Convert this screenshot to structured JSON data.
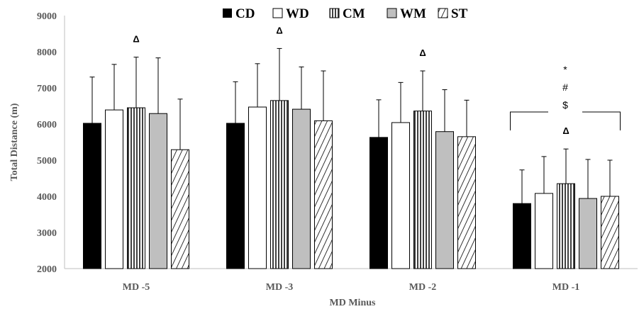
{
  "chart_data": {
    "type": "bar",
    "categories": [
      "MD -5",
      "MD -3",
      "MD -2",
      "MD -1"
    ],
    "series": [
      {
        "name": "CD",
        "values": [
          6020,
          6020,
          5630,
          3800
        ],
        "errors": [
          1280,
          1150,
          1040,
          930
        ],
        "fill": "#000000",
        "pattern": "solid"
      },
      {
        "name": "WD",
        "values": [
          6390,
          6470,
          6040,
          4080
        ],
        "errors": [
          1260,
          1200,
          1110,
          1020
        ],
        "fill": "#ffffff",
        "pattern": "solid"
      },
      {
        "name": "CM",
        "values": [
          6450,
          6650,
          6360,
          4350
        ],
        "errors": [
          1400,
          1440,
          1110,
          960
        ],
        "fill": "#7f7f7f",
        "pattern": "vertical"
      },
      {
        "name": "WM",
        "values": [
          6290,
          6410,
          5790,
          3940
        ],
        "errors": [
          1540,
          1170,
          1160,
          1080
        ],
        "fill": "#bfbfbf",
        "pattern": "solid"
      },
      {
        "name": "ST",
        "values": [
          5290,
          6090,
          5650,
          4000
        ],
        "errors": [
          1400,
          1380,
          1010,
          1000
        ],
        "fill": "#ffffff",
        "pattern": "diagonal"
      }
    ],
    "xlabel": "MD Minus",
    "ylabel": "Total Distance (m)",
    "ylim": [
      2000,
      9000
    ],
    "yticks": [
      2000,
      3000,
      4000,
      5000,
      6000,
      7000,
      8000,
      9000
    ],
    "grid": false,
    "legend": "top-center",
    "annotations": {
      "delta_symbol": "Δ",
      "delta_over": [
        {
          "category": "MD -5",
          "series": "CM"
        },
        {
          "category": "MD -3",
          "series": "CM"
        },
        {
          "category": "MD -2",
          "series": "CM"
        },
        {
          "category": "MD -1",
          "series": "CM"
        }
      ],
      "bracket_category": "MD -1",
      "bracket_symbols": [
        "*",
        "#",
        "$"
      ]
    }
  }
}
